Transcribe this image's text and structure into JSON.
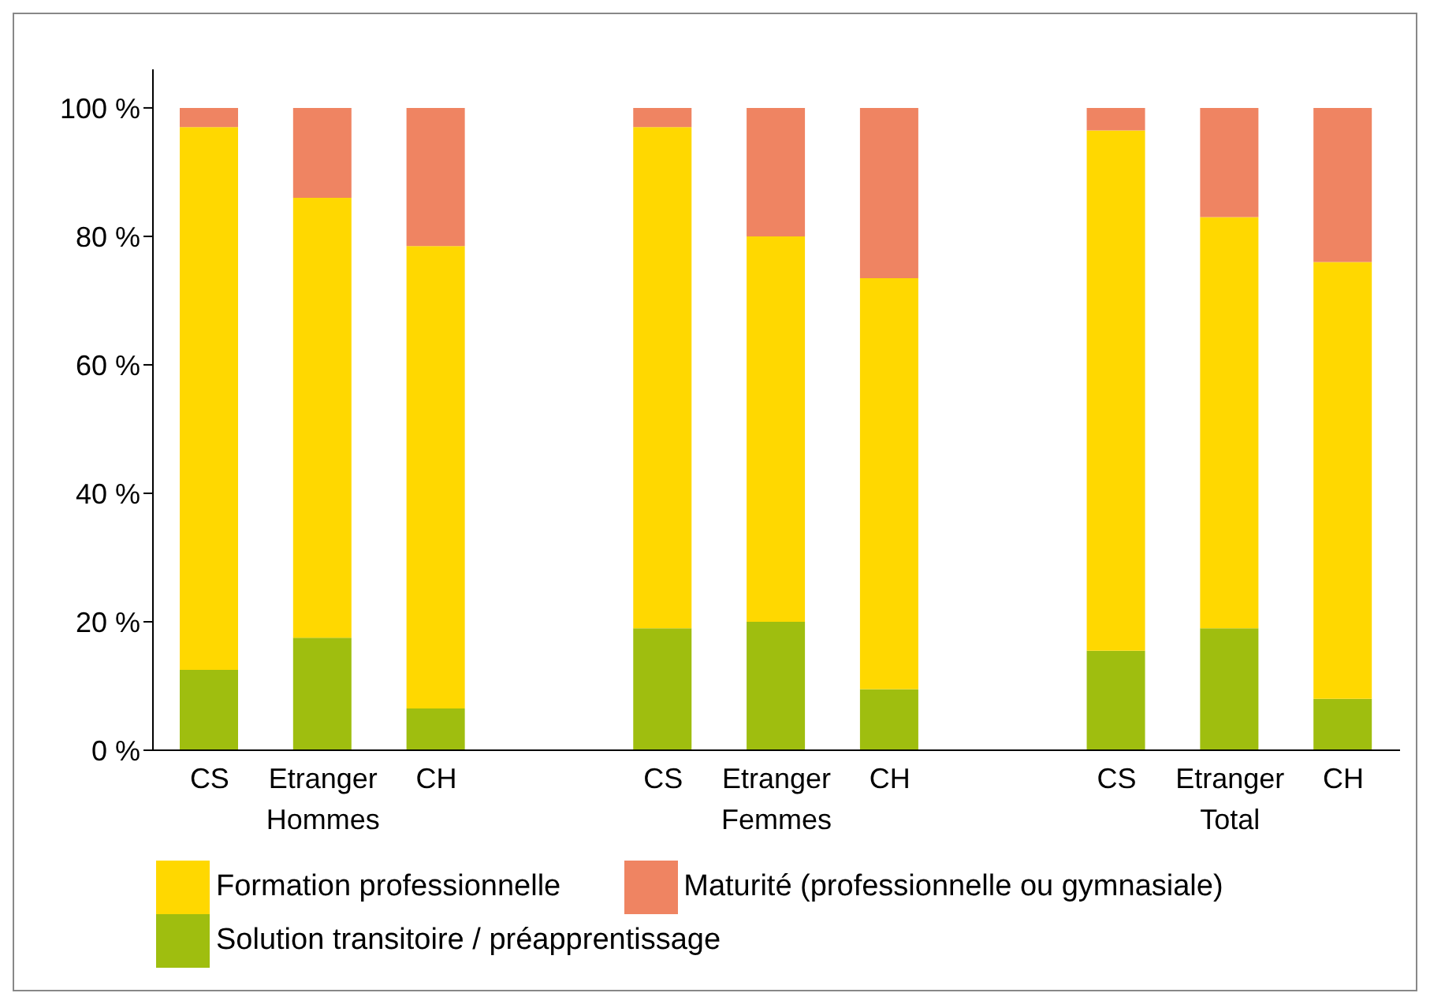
{
  "chart_data": {
    "type": "bar",
    "stacked": true,
    "categories": [
      "CS",
      "Etranger",
      "CH",
      null,
      "CS",
      "Etranger",
      "CH",
      null,
      "CS",
      "Etranger",
      "CH"
    ],
    "series": [
      {
        "name": "Solution transitoire / préapprentissage",
        "color": "#9fbe0f",
        "values": [
          12.5,
          17.5,
          6.5,
          null,
          19,
          20,
          9.5,
          null,
          15.5,
          19,
          8
        ]
      },
      {
        "name": "Formation professionnelle",
        "color": "#ffd800",
        "values": [
          84.5,
          68.5,
          72,
          null,
          78,
          60,
          64,
          null,
          81,
          64,
          68
        ]
      },
      {
        "name": "Maturité (professionnelle ou gymnasiale)",
        "color": "#ef8462",
        "values": [
          3,
          14,
          21.5,
          null,
          3,
          20,
          26.5,
          null,
          3.5,
          17,
          24
        ]
      }
    ],
    "annotations": [
      "Hommes",
      "Femmes",
      "Total"
    ],
    "ylim": [
      0,
      106
    ],
    "yticks": [
      {
        "value": 0,
        "label": "0 %"
      },
      {
        "value": 20,
        "label": "20 %"
      },
      {
        "value": 40,
        "label": "40 %"
      },
      {
        "value": 60,
        "label": "60 %"
      },
      {
        "value": 80,
        "label": "80 %"
      },
      {
        "value": 100,
        "label": "100 %"
      }
    ],
    "legend": "bottom"
  }
}
